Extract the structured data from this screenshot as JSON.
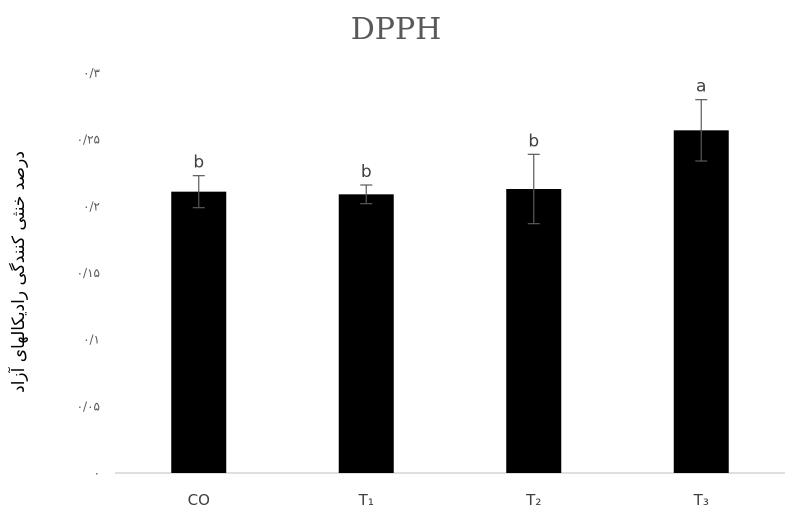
{
  "chart_data": {
    "type": "bar",
    "title": "DPPH",
    "ylabel": "درصد خنثی کنندگی رادیکالهای آزاد",
    "xlabel": "",
    "categories": [
      "CO",
      "T₁",
      "T₂",
      "T₃"
    ],
    "values": [
      0.211,
      0.209,
      0.213,
      0.257
    ],
    "error": [
      0.012,
      0.007,
      0.026,
      0.023
    ],
    "labels": [
      "b",
      "b",
      "b",
      "a"
    ],
    "ylim": [
      0,
      0.3
    ],
    "yticks": [
      {
        "value": 0,
        "label": "۰"
      },
      {
        "value": 0.05,
        "label": "۰/۰۵"
      },
      {
        "value": 0.1,
        "label": "۰/۱"
      },
      {
        "value": 0.15,
        "label": "۰/۱۵"
      },
      {
        "value": 0.2,
        "label": "۰/۲"
      },
      {
        "value": 0.25,
        "label": "۰/۲۵"
      },
      {
        "value": 0.3,
        "label": "۰/۳"
      }
    ],
    "grid": false,
    "legend": "none",
    "bar_color": "#000000",
    "axis_color": "#bfbfbf",
    "error_color": "#595959"
  }
}
